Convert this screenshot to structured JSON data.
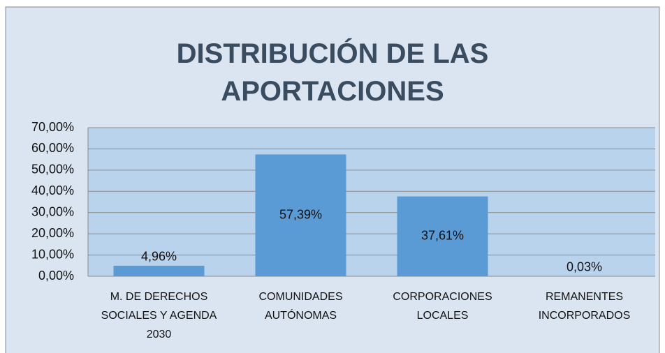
{
  "chart_data": {
    "type": "bar",
    "title": "DISTRIBUCIÓN DE LAS APORTACIONES",
    "categories": [
      "M. DE DERECHOS SOCIALES Y AGENDA 2030",
      "COMUNIDADES AUTÓNOMAS",
      "CORPORACIONES LOCALES",
      "REMANENTES INCORPORADOS"
    ],
    "values": [
      4.96,
      57.39,
      37.61,
      0.03
    ],
    "value_labels": [
      "4,96%",
      "57,39%",
      "37,61%",
      "0,03%"
    ],
    "color": "#5b9bd5",
    "ylim": [
      0,
      70
    ],
    "yticks": [
      {
        "value": 0,
        "label": "0,00%"
      },
      {
        "value": 10,
        "label": "10,00%"
      },
      {
        "value": 20,
        "label": "20,00%"
      },
      {
        "value": 30,
        "label": "30,00%"
      },
      {
        "value": 40,
        "label": "40,00%"
      },
      {
        "value": 50,
        "label": "50,00%"
      },
      {
        "value": 60,
        "label": "60,00%"
      },
      {
        "value": 70,
        "label": "70,00%"
      }
    ],
    "grid": true
  }
}
